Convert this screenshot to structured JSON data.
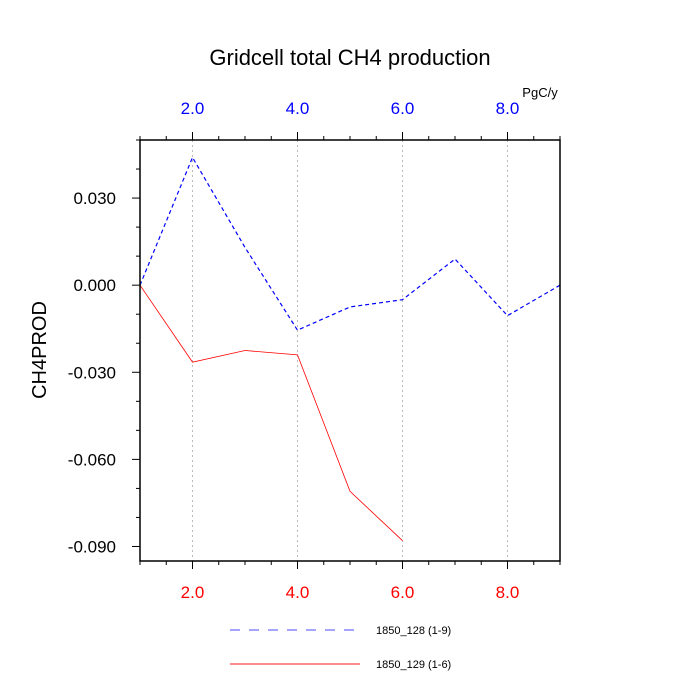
{
  "chart_data": {
    "type": "line",
    "title": "Gridcell total CH4 production",
    "ylabel": "CH4PROD",
    "top_axis_unit": "PgC/y",
    "xlim": [
      1,
      9
    ],
    "ylim": [
      -0.095,
      0.05
    ],
    "x_ticks": [
      2,
      4,
      6,
      8
    ],
    "x_tick_labels": [
      "2.0",
      "4.0",
      "6.0",
      "8.0"
    ],
    "y_ticks": [
      0.03,
      0.0,
      -0.03,
      -0.06,
      -0.09
    ],
    "y_tick_labels": [
      "0.030",
      "0.000",
      "-0.030",
      "-0.060",
      "-0.090"
    ],
    "grid": "vertical-dotted",
    "legend_position": "bottom",
    "series": [
      {
        "name": "1850_128 (1-9)",
        "color": "#0000ff",
        "dash": "dashed",
        "x": [
          1,
          2,
          3,
          4,
          5,
          6,
          7,
          8,
          9
        ],
        "values": [
          0.0,
          0.044,
          0.013,
          -0.0155,
          -0.0075,
          -0.005,
          0.009,
          -0.0105,
          0.0
        ]
      },
      {
        "name": "1850_129 (1-6)",
        "color": "#ff0000",
        "dash": "solid",
        "x": [
          1,
          2,
          3,
          4,
          5,
          6
        ],
        "values": [
          0.0,
          -0.0265,
          -0.0225,
          -0.024,
          -0.071,
          -0.088
        ]
      }
    ],
    "bottom_axis_color": "#ff0000",
    "top_axis_color": "#0000ff"
  }
}
